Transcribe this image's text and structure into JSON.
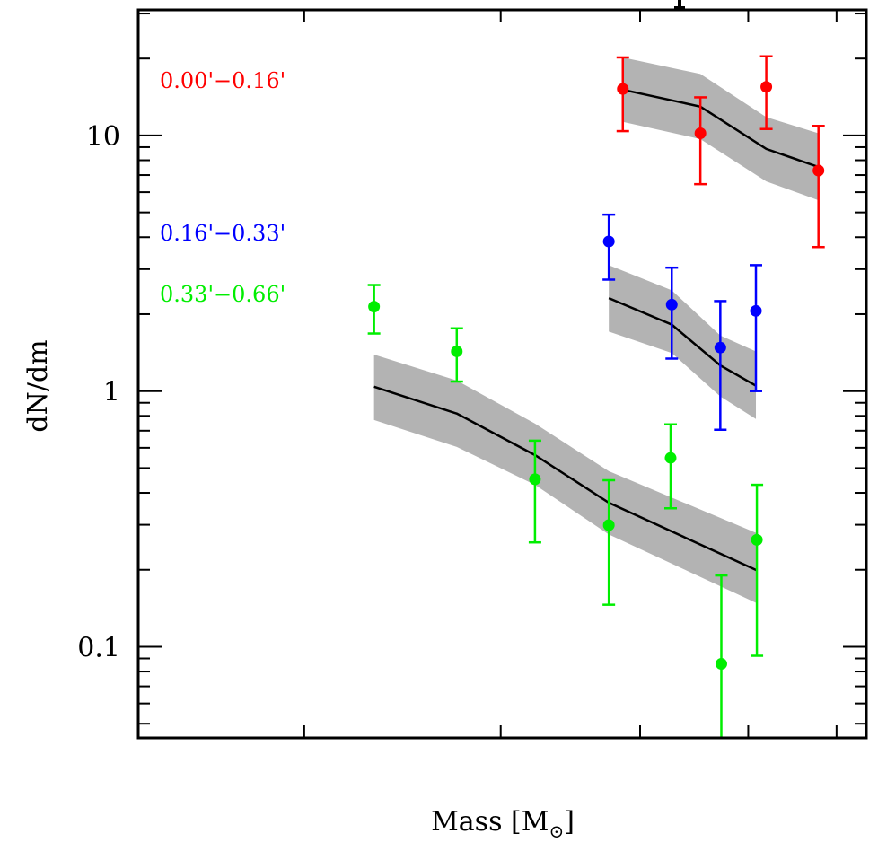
{
  "chart_data": {
    "type": "scatter",
    "title": "",
    "xlabel": "Mass [M⊙]",
    "xlabel_main": "Mass [M",
    "xlabel_sub": "⊙",
    "xlabel_close": "]",
    "ylabel": "dN/dm",
    "xscale": "log",
    "yscale": "log",
    "xlim": [
      0.142,
      0.638
    ],
    "ylim": [
      0.044,
      31
    ],
    "x_ticks": [
      0.2,
      0.3,
      0.4,
      0.5,
      0.6
    ],
    "x_tick_labels": [
      "",
      "",
      "",
      "",
      ""
    ],
    "y_major_ticks": [
      0.1,
      1,
      10
    ],
    "y_tick_labels": [
      "0.1",
      "1",
      "10"
    ],
    "y_minor_ticks": [
      0.05,
      0.06,
      0.07,
      0.08,
      0.09,
      0.2,
      0.3,
      0.4,
      0.5,
      0.6,
      0.7,
      0.8,
      0.9,
      2,
      3,
      4,
      5,
      6,
      7,
      8,
      9,
      20,
      30
    ],
    "grid": false,
    "legend_placement": "top-left",
    "series": [
      {
        "name": "0.00'−0.16'",
        "color": "#ff0000",
        "points": [
          {
            "x": 0.386,
            "y": 15.2,
            "err_low": 10.4,
            "err_high": 20.2
          },
          {
            "x": 0.453,
            "y": 10.2,
            "err_low": 6.45,
            "err_high": 14.1
          },
          {
            "x": 0.519,
            "y": 15.5,
            "err_low": 10.6,
            "err_high": 20.4
          },
          {
            "x": 0.578,
            "y": 7.29,
            "err_low": 3.66,
            "err_high": 10.9
          }
        ],
        "model": {
          "x": [
            0.386,
            0.453,
            0.519,
            0.578
          ],
          "y": [
            15.1,
            12.97,
            8.86,
            7.53
          ],
          "band_upper": [
            20.2,
            17.4,
            11.8,
            10.2
          ],
          "band_lower": [
            11.3,
            9.68,
            6.61,
            5.58
          ]
        }
      },
      {
        "name": "0.16'−0.33'",
        "color": "#0000ff",
        "points": [
          {
            "x": 0.375,
            "y": 3.85,
            "err_low": 2.73,
            "err_high": 4.9
          },
          {
            "x": 0.427,
            "y": 2.18,
            "err_low": 1.34,
            "err_high": 3.04
          },
          {
            "x": 0.472,
            "y": 1.48,
            "err_low": 0.706,
            "err_high": 2.25
          },
          {
            "x": 0.508,
            "y": 2.06,
            "err_low": 1.0,
            "err_high": 3.11
          }
        ],
        "model": {
          "x": [
            0.375,
            0.427,
            0.472,
            0.508
          ],
          "y": [
            2.31,
            1.82,
            1.26,
            1.05
          ],
          "band_upper": [
            3.11,
            2.48,
            1.65,
            1.43
          ],
          "band_lower": [
            1.71,
            1.41,
            0.953,
            0.778
          ]
        }
      },
      {
        "name": "0.33'−0.66'",
        "color": "#00ee00",
        "points": [
          {
            "x": 0.231,
            "y": 2.14,
            "err_low": 1.68,
            "err_high": 2.6
          },
          {
            "x": 0.274,
            "y": 1.43,
            "err_low": 1.09,
            "err_high": 1.76
          },
          {
            "x": 0.322,
            "y": 0.452,
            "err_low": 0.256,
            "err_high": 0.64
          },
          {
            "x": 0.375,
            "y": 0.299,
            "err_low": 0.146,
            "err_high": 0.448
          },
          {
            "x": 0.426,
            "y": 0.548,
            "err_low": 0.348,
            "err_high": 0.741
          },
          {
            "x": 0.473,
            "y": 0.0857,
            "err_low": 0.02,
            "err_high": 0.19
          },
          {
            "x": 0.509,
            "y": 0.262,
            "err_low": 0.0922,
            "err_high": 0.43
          }
        ],
        "model": {
          "x": [
            0.231,
            0.274,
            0.322,
            0.375,
            0.509
          ],
          "y": [
            1.04,
            0.817,
            0.562,
            0.366,
            0.199
          ],
          "band_upper": [
            1.39,
            1.1,
            0.746,
            0.486,
            0.278
          ],
          "band_lower": [
            0.771,
            0.605,
            0.43,
            0.275,
            0.148
          ]
        }
      }
    ],
    "model_line_color": "#000000",
    "band_color": "#b3b3b3"
  }
}
